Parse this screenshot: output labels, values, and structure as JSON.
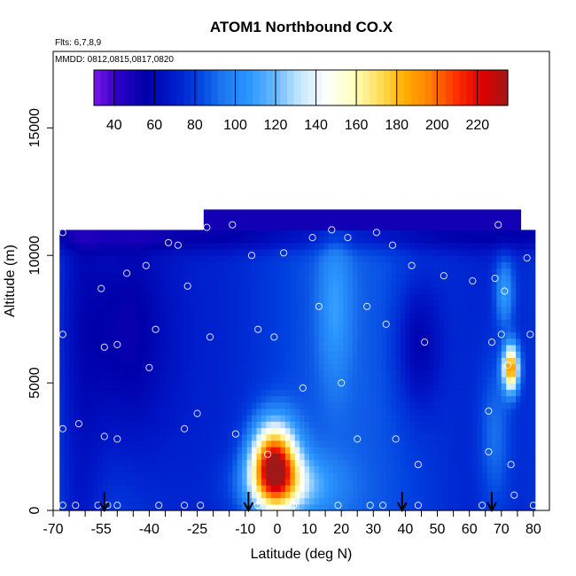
{
  "chart_data": {
    "type": "heatmap",
    "title": "ATOM1 Northbound CO.X",
    "annotations": [
      "Flts: 6,7,8,9",
      "MMDD: 0812,0815,0817,0820"
    ],
    "xlabel": "Latitude (deg N)",
    "ylabel": "Altitude (m)",
    "xlim": [
      -70,
      85
    ],
    "ylim": [
      0,
      18000
    ],
    "x_ticks": [
      -70,
      -55,
      -40,
      -25,
      -10,
      0,
      10,
      20,
      30,
      40,
      50,
      60,
      70,
      80
    ],
    "y_ticks": [
      0,
      5000,
      10000,
      15000
    ],
    "colorbar": {
      "min": 30,
      "max": 235,
      "ticks": [
        40,
        60,
        80,
        100,
        120,
        140,
        160,
        180,
        200,
        220
      ],
      "colors": [
        "#7a16e8",
        "#2a00c4",
        "#0000aa",
        "#0018c8",
        "#0040e0",
        "#1e78f0",
        "#2a96ff",
        "#6ab8ff",
        "#c8e8ff",
        "#ffffff",
        "#ffffc0",
        "#ffe060",
        "#ffb000",
        "#ff8000",
        "#ff3000",
        "#e00000",
        "#a01818"
      ]
    },
    "data_region": {
      "lat_range": [
        -68,
        80
      ],
      "alt_range": [
        0,
        11000
      ],
      "top_extension": {
        "lat_range": [
          -23,
          76
        ],
        "alt_max": 11800
      }
    },
    "field_features": [
      {
        "feature": "southern high-latitude low values",
        "lat": -45,
        "alt": 7000,
        "value": 50
      },
      {
        "feature": "tropical boundary-layer maximum",
        "lat": -2,
        "alt": 2000,
        "value": 225
      },
      {
        "feature": "arctic mid-level maximum",
        "lat": 73,
        "alt": 5600,
        "value": 205
      },
      {
        "feature": "northern upper-level minimum",
        "lat": 45,
        "alt": 6000,
        "value": 50
      }
    ],
    "flight_arrows_lat": [
      -54,
      -9,
      39,
      67
    ],
    "sample_points": [
      [
        -67,
        10900
      ],
      [
        -67,
        6900
      ],
      [
        -67,
        3200
      ],
      [
        -67,
        200
      ],
      [
        -63,
        200
      ],
      [
        -62,
        3400
      ],
      [
        -56,
        200
      ],
      [
        -55,
        8700
      ],
      [
        -54,
        6400
      ],
      [
        -54,
        2900
      ],
      [
        -53,
        200
      ],
      [
        -50,
        200
      ],
      [
        -50,
        6500
      ],
      [
        -50,
        2800
      ],
      [
        -47,
        9300
      ],
      [
        -41,
        9600
      ],
      [
        -40,
        5600
      ],
      [
        -38,
        7100
      ],
      [
        -37,
        200
      ],
      [
        -34,
        10500
      ],
      [
        -31,
        10400
      ],
      [
        -29,
        3200
      ],
      [
        -28,
        8800
      ],
      [
        -29,
        200
      ],
      [
        -25,
        3800
      ],
      [
        -24,
        200
      ],
      [
        -22,
        11100
      ],
      [
        -21,
        6800
      ],
      [
        -14,
        11200
      ],
      [
        -13,
        3000
      ],
      [
        -8,
        10000
      ],
      [
        -6,
        7100
      ],
      [
        -6,
        200
      ],
      [
        -3,
        2200
      ],
      [
        -1,
        6800
      ],
      [
        2,
        10100
      ],
      [
        5,
        200
      ],
      [
        8,
        4800
      ],
      [
        11,
        10700
      ],
      [
        13,
        8000
      ],
      [
        17,
        11000
      ],
      [
        19,
        200
      ],
      [
        20,
        5000
      ],
      [
        22,
        10700
      ],
      [
        25,
        2800
      ],
      [
        28,
        8000
      ],
      [
        29,
        200
      ],
      [
        31,
        10900
      ],
      [
        33,
        200
      ],
      [
        34,
        7300
      ],
      [
        36,
        10400
      ],
      [
        37,
        2800
      ],
      [
        42,
        9600
      ],
      [
        44,
        1800
      ],
      [
        44,
        200
      ],
      [
        46,
        6600
      ],
      [
        52,
        9200
      ],
      [
        61,
        9000
      ],
      [
        64,
        200
      ],
      [
        66,
        3900
      ],
      [
        66,
        2300
      ],
      [
        67,
        6600
      ],
      [
        68,
        9100
      ],
      [
        69,
        11200
      ],
      [
        70,
        6900
      ],
      [
        71,
        8600
      ],
      [
        72,
        5700
      ],
      [
        73,
        1800
      ],
      [
        74,
        600
      ],
      [
        78,
        9900
      ],
      [
        79,
        6900
      ],
      [
        80,
        200
      ]
    ]
  }
}
